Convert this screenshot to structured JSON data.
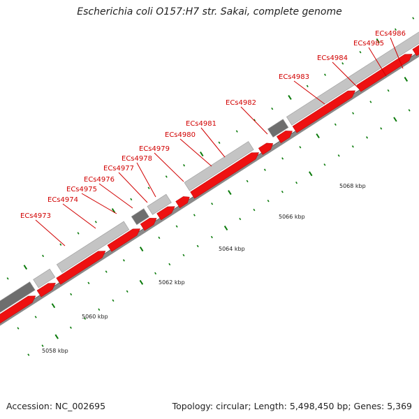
{
  "title": "Escherichia coli O157:H7 str. Sakai, complete genome",
  "footer": {
    "accession": "Accession: NC_002695",
    "topology": "Topology: circular; Length: 5,498,450 bp; Genes: 5,369"
  },
  "colors": {
    "backbone": "#8a8a8a",
    "cds_forward_light": "#c4c4c4",
    "cds_forward_dark": "#6e6e6e",
    "cds_reverse": "#ee1111",
    "gene_label": "#d10000",
    "tick": "#0a7a0a"
  },
  "gene_labels": [
    "ECs4973",
    "ECs4974",
    "ECs4975",
    "ECs4976",
    "ECs4977",
    "ECs4978",
    "ECs4979",
    "ECs4980",
    "ECs4981",
    "ECs4982",
    "ECs4983",
    "ECs4984",
    "ECs4985",
    "ECs4986"
  ],
  "scale_labels": [
    "5058 kbp",
    "5060 kbp",
    "5062 kbp",
    "5064 kbp",
    "5066 kbp",
    "5068 kbp"
  ]
}
